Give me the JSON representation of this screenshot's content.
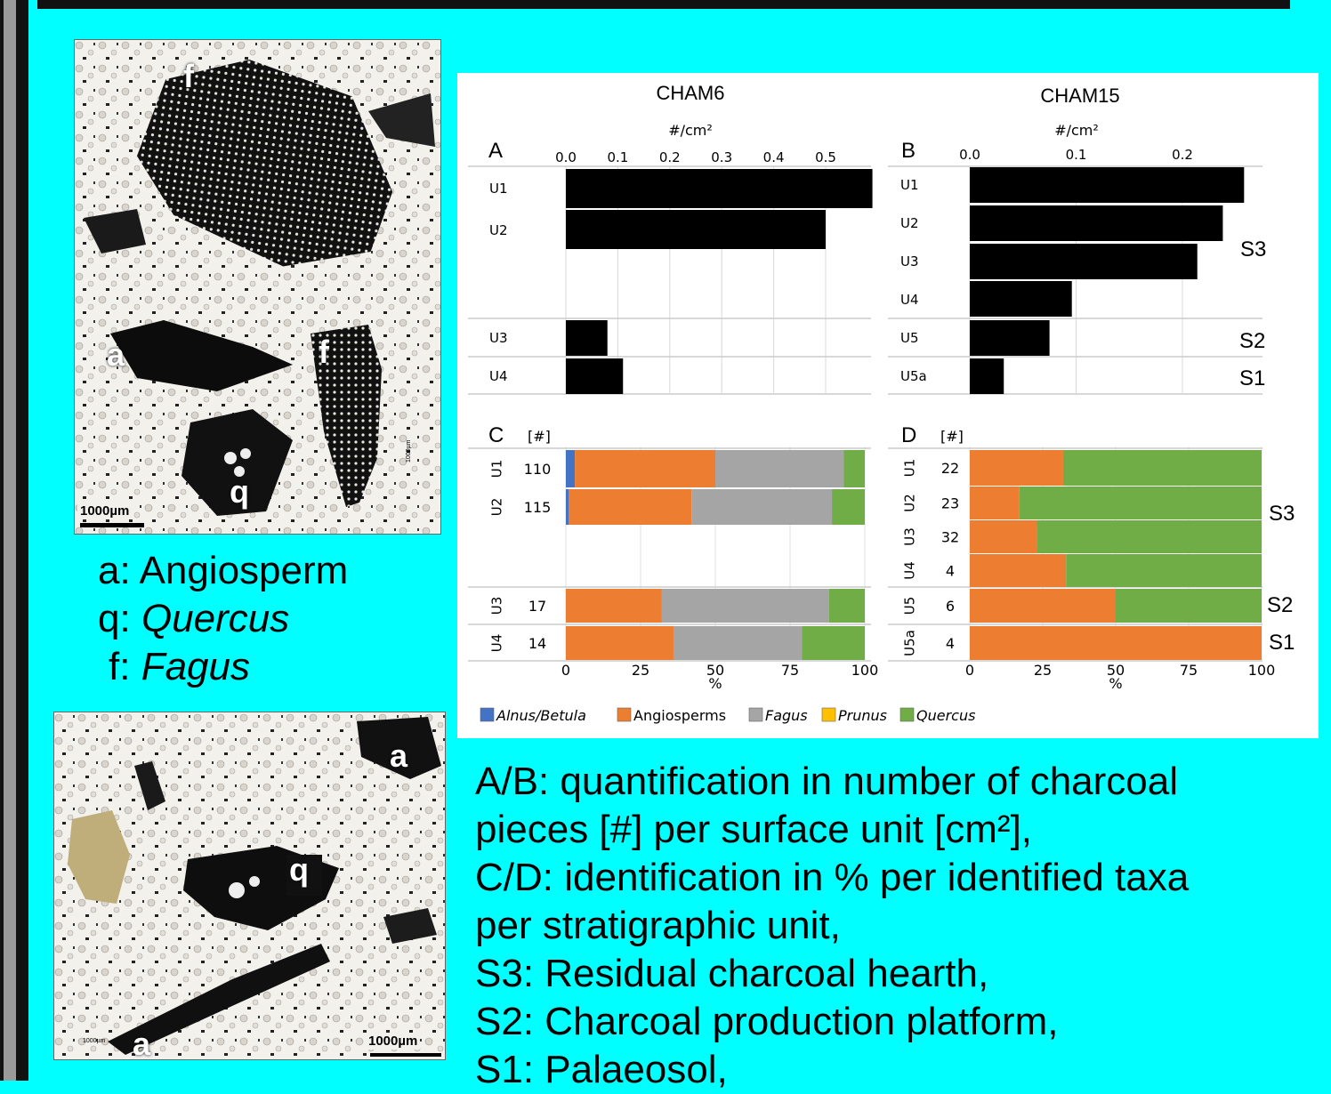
{
  "photos": {
    "top": {
      "labels": [
        "f",
        "a",
        "f",
        "q"
      ],
      "scale": "1000µm",
      "small_scale": "1000µm"
    },
    "bottom": {
      "labels": [
        "a",
        "q",
        "a"
      ],
      "scale": "1000µm",
      "small_scale": "1000µm"
    }
  },
  "photo_legend": [
    {
      "key": "a:",
      "name": "Angiosperm",
      "italic": false
    },
    {
      "key": "q:",
      "name": "Quercus",
      "italic": true
    },
    {
      "key": "f:",
      "name": "Fagus",
      "italic": true
    }
  ],
  "colors": {
    "background": "#00ffff",
    "bar": "#000000",
    "alnus_betula": "#4472c4",
    "angiosperms": "#ed7d31",
    "fagus": "#a5a5a5",
    "prunus": "#ffc000",
    "quercus": "#70ad47"
  },
  "chart_data": [
    {
      "panel": "A",
      "type": "bar",
      "orientation": "horizontal",
      "title": "CHAM6",
      "axis_label": "#/cm²",
      "ticks": [
        "0.0",
        "0.1",
        "0.2",
        "0.3",
        "0.4",
        "0.5"
      ],
      "xlim": [
        0,
        0.59
      ],
      "categories": [
        "U1",
        "U2",
        "U3",
        "U4"
      ],
      "values": [
        0.59,
        0.5,
        0.08,
        0.11
      ]
    },
    {
      "panel": "B",
      "type": "bar",
      "orientation": "horizontal",
      "title": "CHAM15",
      "axis_label": "#/cm²",
      "ticks": [
        "0.0",
        "0.1",
        "0.2"
      ],
      "xlim": [
        0,
        0.28
      ],
      "categories": [
        "U1",
        "U2",
        "U3",
        "U4",
        "U5",
        "U5a"
      ],
      "values": [
        0.258,
        0.238,
        0.214,
        0.096,
        0.075,
        0.032
      ],
      "sections": [
        "S3",
        "S2",
        "S1"
      ]
    },
    {
      "panel": "C",
      "type": "bar",
      "orientation": "horizontal",
      "stacked": true,
      "count_label": "[#]",
      "categories": [
        "U1",
        "U2",
        "U3",
        "U4"
      ],
      "counts": [
        "110",
        "115",
        "17",
        "14"
      ],
      "ticks": [
        "0",
        "25",
        "50",
        "75",
        "100"
      ],
      "xlabel": "%",
      "series": [
        {
          "name": "Alnus/Betula",
          "values": [
            3,
            1,
            0,
            0
          ]
        },
        {
          "name": "Angiosperms",
          "values": [
            47,
            41,
            32,
            36
          ]
        },
        {
          "name": "Fagus",
          "values": [
            43,
            47,
            56,
            43
          ]
        },
        {
          "name": "Prunus",
          "values": [
            0,
            0,
            0,
            0
          ]
        },
        {
          "name": "Quercus",
          "values": [
            7,
            11,
            12,
            21
          ]
        }
      ]
    },
    {
      "panel": "D",
      "type": "bar",
      "orientation": "horizontal",
      "stacked": true,
      "count_label": "[#]",
      "categories": [
        "U1",
        "U2",
        "U3",
        "U4",
        "U5",
        "U5a"
      ],
      "counts": [
        "22",
        "23",
        "32",
        "4",
        "6",
        "4"
      ],
      "ticks": [
        "0",
        "25",
        "50",
        "75",
        "100"
      ],
      "xlabel": "%",
      "sections": [
        "S3",
        "S2",
        "S1"
      ],
      "series": [
        {
          "name": "Alnus/Betula",
          "values": [
            0,
            0,
            0,
            0,
            0,
            0
          ]
        },
        {
          "name": "Angiosperms",
          "values": [
            32,
            17,
            23,
            33,
            50,
            100
          ]
        },
        {
          "name": "Fagus",
          "values": [
            0,
            0,
            0,
            0,
            0,
            0
          ]
        },
        {
          "name": "Prunus",
          "values": [
            0,
            0,
            0,
            0,
            0,
            0
          ]
        },
        {
          "name": "Quercus",
          "values": [
            68,
            83,
            77,
            67,
            50,
            0
          ]
        }
      ]
    }
  ],
  "chart_legend": [
    {
      "name": "Alnus/Betula",
      "italic": true
    },
    {
      "name": "Angiosperms",
      "italic": false
    },
    {
      "name": "Fagus",
      "italic": true
    },
    {
      "name": "Prunus",
      "italic": true
    },
    {
      "name": "Quercus",
      "italic": true
    }
  ],
  "caption": [
    "A/B: quantification in number of charcoal",
    "pieces [#] per surface unit [cm²],",
    "C/D: identification in % per identified taxa",
    "per stratigraphic unit,",
    "S3: Residual charcoal hearth,",
    "S2: Charcoal production platform,",
    "S1: Palaeosol,"
  ]
}
